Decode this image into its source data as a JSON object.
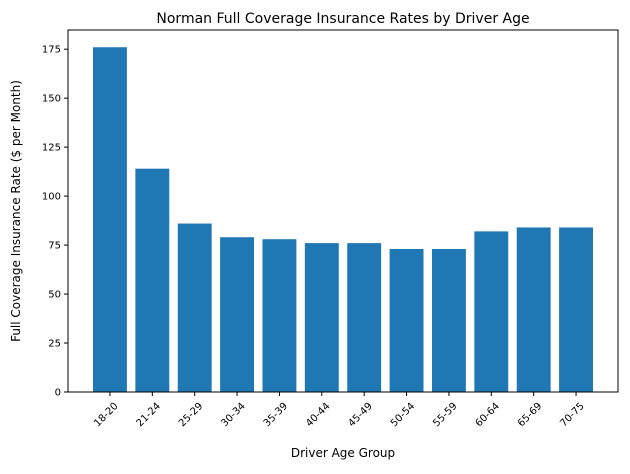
{
  "chart_data": {
    "type": "bar",
    "title": "Norman Full Coverage Insurance Rates by Driver Age",
    "xlabel": "Driver Age Group",
    "ylabel": "Full Coverage Insurance Rate ($ per Month)",
    "categories": [
      "18-20",
      "21-24",
      "25-29",
      "30-34",
      "35-39",
      "40-44",
      "45-49",
      "50-54",
      "55-59",
      "60-64",
      "65-69",
      "70-75"
    ],
    "values": [
      176,
      114,
      86,
      79,
      78,
      76,
      76,
      73,
      73,
      82,
      84,
      84
    ],
    "ylim": [
      0,
      184.8
    ],
    "yticks": [
      0,
      25,
      50,
      75,
      100,
      125,
      150,
      175
    ],
    "grid": false,
    "bar_color": "#1f77b4",
    "xtick_rotation": 45
  }
}
